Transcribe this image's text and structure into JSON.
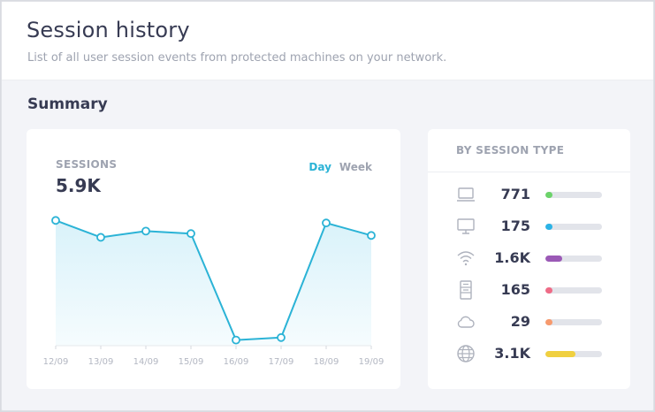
{
  "header": {
    "title": "Session history",
    "subtitle": "List of all user session events from protected machines on your network."
  },
  "summary": {
    "section_title": "Summary",
    "sessions_label": "SESSIONS",
    "sessions_value": "5.9K",
    "range_options": [
      {
        "label": "Day",
        "active": true
      },
      {
        "label": "Week",
        "active": false
      }
    ]
  },
  "chart_data": {
    "type": "area",
    "categories": [
      "12/09",
      "13/09",
      "14/09",
      "15/09",
      "16/09",
      "17/09",
      "18/09",
      "19/09"
    ],
    "values": [
      1000,
      865,
      915,
      895,
      45,
      65,
      980,
      880
    ],
    "ylim": [
      0,
      1200
    ],
    "grid": false,
    "line_color": "#2bb3d6",
    "fill_color": "#d9f2fa"
  },
  "by_type": {
    "title": "BY SESSION TYPE",
    "items": [
      {
        "icon": "laptop-icon",
        "value": "771",
        "fraction": 0.12,
        "color": "#6cd36a"
      },
      {
        "icon": "desktop-icon",
        "value": "175",
        "fraction": 0.12,
        "color": "#2bb3e6"
      },
      {
        "icon": "wifi-icon",
        "value": "1.6K",
        "fraction": 0.29,
        "color": "#9b59b6"
      },
      {
        "icon": "server-icon",
        "value": "165",
        "fraction": 0.12,
        "color": "#ef6b86"
      },
      {
        "icon": "cloud-icon",
        "value": "29",
        "fraction": 0.12,
        "color": "#f79a6d"
      },
      {
        "icon": "globe-icon",
        "value": "3.1K",
        "fraction": 0.53,
        "color": "#f0d040"
      }
    ]
  }
}
